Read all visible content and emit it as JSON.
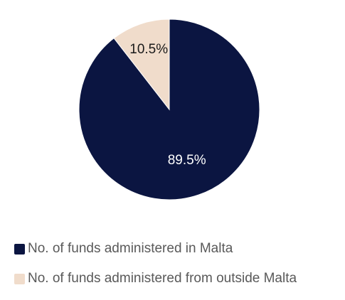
{
  "chart_data": {
    "type": "pie",
    "title": "",
    "start_angle_deg": 0,
    "direction": "clockwise",
    "slices": [
      {
        "label": "No. of funds administered in Malta",
        "value": 89.5,
        "display": "89.5%",
        "color": "#0b1541",
        "text_color": "#ffffff"
      },
      {
        "label": "No. of funds administered from outside Malta",
        "value": 10.5,
        "display": "10.5%",
        "color": "#f0dccb",
        "text_color": "#1a1a1a"
      }
    ],
    "legend": {
      "placement": "bottom-left",
      "entries": [
        {
          "label": "No. of funds administered in Malta",
          "color": "#0b1541"
        },
        {
          "label": "No. of funds administered from outside Malta",
          "color": "#f0dccb"
        }
      ]
    }
  }
}
